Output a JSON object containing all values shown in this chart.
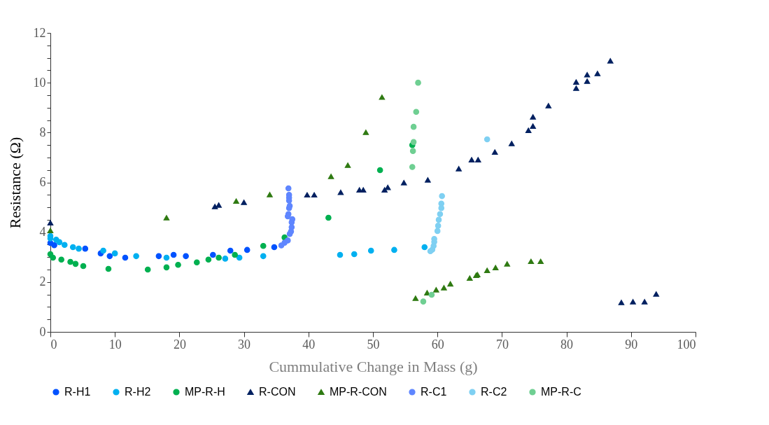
{
  "chart_data": {
    "type": "scatter",
    "xlabel": "Cummulative Change in Mass (g)",
    "ylabel": "Resistance (Ω)",
    "xlim": [
      0,
      100
    ],
    "xticks": [
      0,
      10,
      20,
      30,
      40,
      50,
      60,
      70,
      80,
      90,
      100
    ],
    "ylim": [
      0,
      12
    ],
    "yticks": [
      0,
      {
        "value": 0.5,
        "label": null
      },
      {
        "value": 1,
        "label": null
      },
      {
        "value": 1.5,
        "label": null
      },
      2,
      {
        "value": 2.5,
        "label": null
      },
      {
        "value": 3,
        "label": null
      },
      {
        "value": 3.5,
        "label": null
      },
      4,
      {
        "value": 4.5,
        "label": null
      },
      {
        "value": 5,
        "label": null
      },
      {
        "value": 5.5,
        "label": null
      },
      6,
      {
        "value": 6.5,
        "label": null
      },
      {
        "value": 7,
        "label": null
      },
      {
        "value": 7.5,
        "label": null
      },
      8,
      {
        "value": 8.5,
        "label": null
      },
      {
        "value": 9,
        "label": null
      },
      {
        "value": 9.5,
        "label": null
      },
      10,
      {
        "value": 10.5,
        "label": null
      },
      {
        "value": 11,
        "label": null
      },
      {
        "value": 11.5,
        "label": null
      },
      12
    ],
    "grid": false,
    "legend": "bottom",
    "series": [
      {
        "name": "R-H1",
        "color": "#0052ff",
        "marker": "circle",
        "x": [
          0,
          0.6,
          5.4,
          7.8,
          9.2,
          11.6,
          16.8,
          19.1,
          21,
          25.2,
          27.9,
          30.5,
          34.7
        ],
        "values": [
          3.57,
          3.48,
          3.34,
          3.15,
          3.04,
          2.98,
          3.04,
          3.09,
          3.04,
          3.09,
          3.26,
          3.29,
          3.4
        ]
      },
      {
        "name": "R-H2",
        "color": "#00b0f0",
        "marker": "circle",
        "x": [
          0,
          0,
          0.9,
          1.4,
          2.2,
          3.5,
          4.4,
          8.2,
          10,
          13.3,
          18,
          27.1,
          29.3,
          33,
          44.9,
          47.1,
          49.7,
          53.3,
          58
        ],
        "values": [
          3.85,
          3.75,
          3.7,
          3.6,
          3.49,
          3.4,
          3.34,
          3.26,
          3.15,
          3.04,
          2.98,
          2.94,
          2.98,
          3.04,
          3.09,
          3.12,
          3.26,
          3.29,
          3.4
        ]
      },
      {
        "name": "MP-R-H",
        "color": "#00b050",
        "marker": "circle",
        "x": [
          0,
          0.4,
          1.7,
          3.1,
          3.9,
          5.1,
          9,
          15.1,
          18,
          19.8,
          22.7,
          24.5,
          26.1,
          28.6,
          33,
          36.3,
          43.1,
          51.1,
          56.1
        ],
        "values": [
          3.12,
          2.98,
          2.9,
          2.81,
          2.73,
          2.64,
          2.53,
          2.5,
          2.59,
          2.69,
          2.79,
          2.9,
          2.98,
          3.09,
          3.45,
          3.79,
          4.58,
          6.49,
          7.5
        ]
      },
      {
        "name": "R-CON",
        "color": "#002060",
        "marker": "triangle",
        "x": [
          0,
          25.5,
          26.1,
          30,
          39.8,
          40.9,
          45,
          47.9,
          48.5,
          51.8,
          52.3,
          54.8,
          58.5,
          63.3,
          65.3,
          66.3,
          68.9,
          71.5,
          74.1,
          74.8,
          74.8,
          77.2,
          81.5,
          81.5,
          83.2,
          83.2,
          84.8,
          86.8,
          88.5,
          90.3,
          92.1,
          93.9
        ],
        "values": [
          4.38,
          5.03,
          5.09,
          5.2,
          5.5,
          5.5,
          5.6,
          5.7,
          5.7,
          5.7,
          5.8,
          5.99,
          6.1,
          6.55,
          6.91,
          6.91,
          7.22,
          7.56,
          8.09,
          8.26,
          8.63,
          9.08,
          9.78,
          10.03,
          10.06,
          10.32,
          10.37,
          10.88,
          1.18,
          1.21,
          1.21,
          1.52
        ]
      },
      {
        "name": "MP-R-CON",
        "color": "#2f7a12",
        "marker": "triangle",
        "x": [
          0,
          18,
          28.8,
          34,
          43.5,
          46.1,
          48.9,
          51.4,
          56.6,
          58.4,
          59.8,
          61,
          62,
          65,
          66,
          66.2,
          67.7,
          69,
          70.8,
          74.5,
          76
        ],
        "values": [
          4.07,
          4.58,
          5.25,
          5.51,
          6.24,
          6.69,
          8.01,
          9.42,
          1.35,
          1.57,
          1.69,
          1.77,
          1.93,
          2.16,
          2.27,
          2.3,
          2.47,
          2.58,
          2.73,
          2.83,
          2.83
        ]
      },
      {
        "name": "R-C1",
        "color": "#5f86ff",
        "marker": "circle",
        "x": [
          36.9,
          37,
          37,
          37,
          37.1,
          37,
          36.9,
          36.8,
          37.5,
          37.4,
          37.4,
          37.3,
          37.1,
          36.8,
          36.3,
          35.8
        ],
        "values": [
          5.76,
          5.5,
          5.39,
          5.27,
          5.06,
          4.97,
          4.73,
          4.64,
          4.52,
          4.4,
          4.2,
          4.03,
          3.93,
          3.67,
          3.58,
          3.47
        ]
      },
      {
        "name": "R-C2",
        "color": "#7fd0f2",
        "marker": "circle",
        "x": [
          60.7,
          60.6,
          60.6,
          60.4,
          60.2,
          60.1,
          60,
          59.5,
          59.5,
          59.4,
          59.2,
          58.9,
          67.7
        ],
        "values": [
          5.45,
          5.15,
          4.97,
          4.73,
          4.5,
          4.26,
          4.05,
          3.73,
          3.61,
          3.45,
          3.3,
          3.24,
          7.73
        ]
      },
      {
        "name": "MP-R-C",
        "color": "#6fcf92",
        "marker": "circle",
        "x": [
          57,
          56.7,
          56.3,
          56.3,
          56.2,
          56.1,
          59.1,
          57.8
        ],
        "values": [
          10,
          8.83,
          8.23,
          7.62,
          7.26,
          6.62,
          1.49,
          1.22
        ]
      }
    ]
  }
}
